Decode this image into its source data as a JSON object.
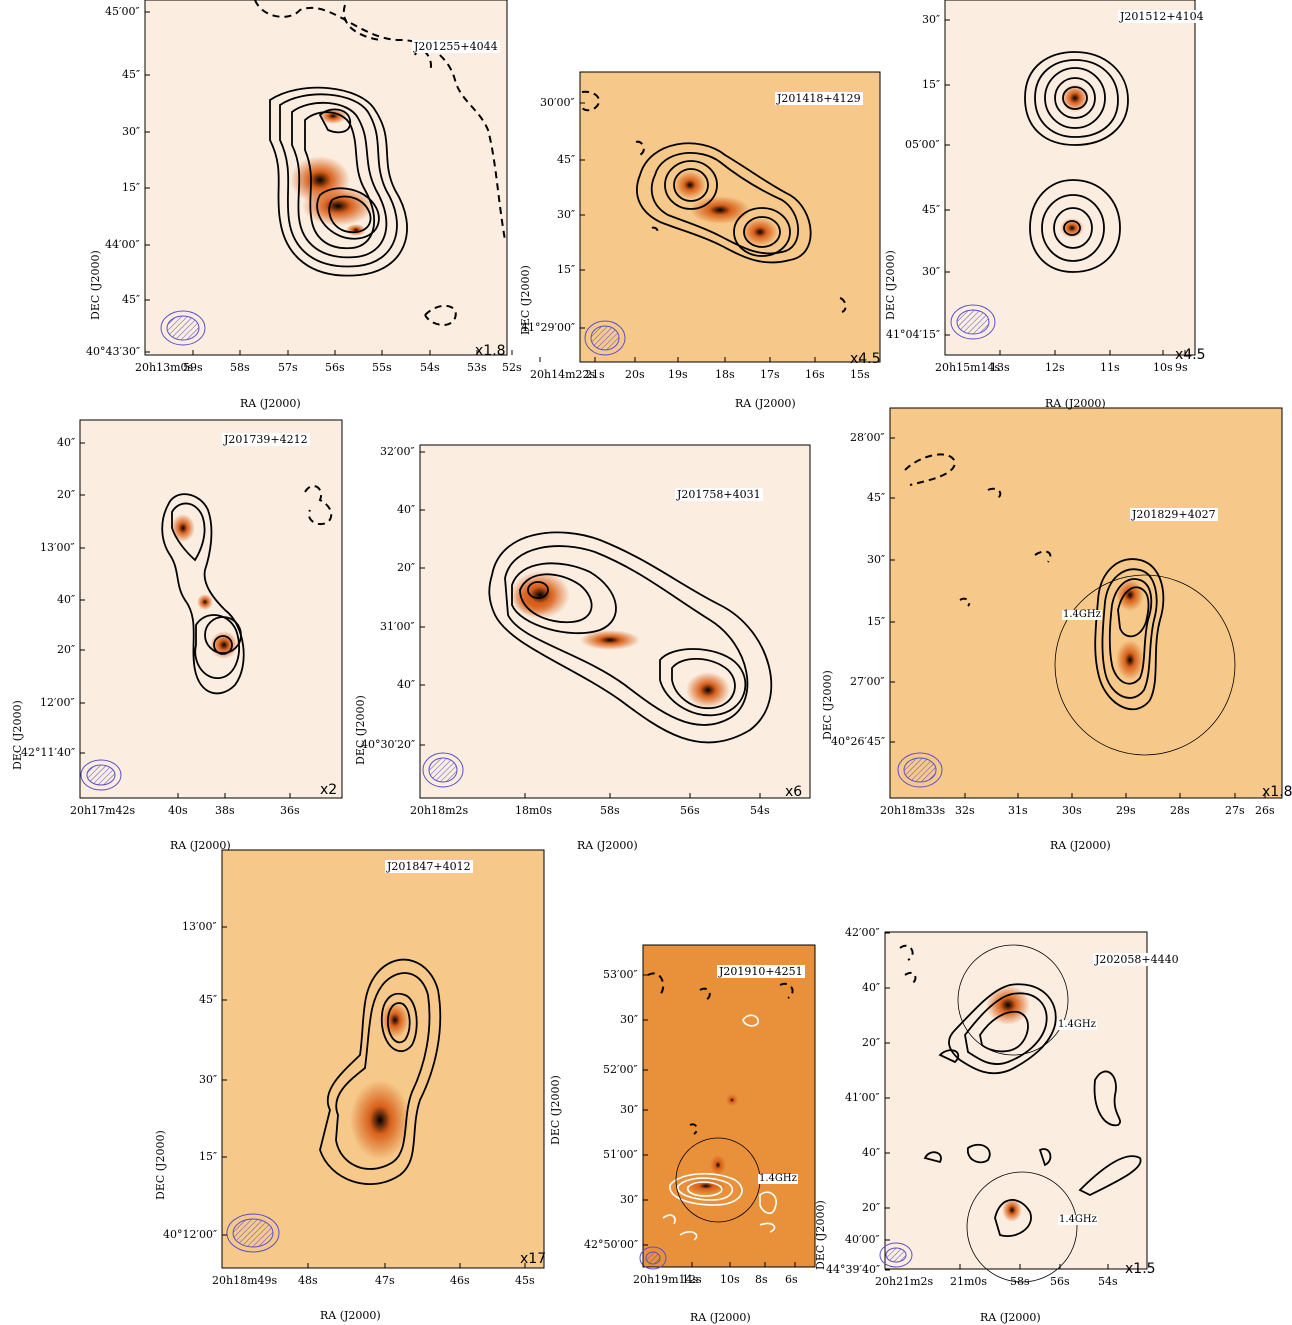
{
  "figure": {
    "panels": [
      {
        "id": "p1",
        "source": "J201255+4044",
        "scale": "x1.8",
        "ra_ticks": [
          "20h13m0s",
          "59s",
          "58s",
          "57s",
          "56s",
          "55s",
          "54s",
          "53s",
          "52s"
        ],
        "dec_ticks": [
          "45′00″",
          "45″",
          "30″",
          "15″",
          "44′00″",
          "45″",
          "40°43′30″"
        ],
        "ra_label": "RA (J2000)",
        "dec_label": "DEC (J2000)",
        "freq_label": "",
        "background": "light"
      },
      {
        "id": "p2",
        "source": "J201418+4129",
        "scale": "x4.5",
        "ra_ticks": [
          "20h14m22s",
          "21s",
          "20s",
          "19s",
          "18s",
          "17s",
          "16s",
          "15s"
        ],
        "dec_ticks": [
          "30′00″",
          "45″",
          "30″",
          "15″",
          "41°29′00″"
        ],
        "ra_label": "RA (J2000)",
        "dec_label": "DEC (J2000)",
        "freq_label": "",
        "background": "orange"
      },
      {
        "id": "p3",
        "source": "J201512+4104",
        "scale": "x4.5",
        "ra_ticks": [
          "20h15m14s",
          "13s",
          "12s",
          "11s",
          "10s",
          "9s"
        ],
        "dec_ticks": [
          "30″",
          "15″",
          "05′00″",
          "45″",
          "30″",
          "41°04′15″"
        ],
        "ra_label": "RA (J2000)",
        "dec_label": "DEC (J2000)",
        "freq_label": "",
        "background": "light"
      },
      {
        "id": "p4",
        "source": "J201739+4212",
        "scale": "x2",
        "ra_ticks": [
          "20h17m42s",
          "40s",
          "38s",
          "36s"
        ],
        "dec_ticks": [
          "40″",
          "20″",
          "13′00″",
          "40″",
          "20″",
          "12′00″",
          "42°11′40″"
        ],
        "ra_label": "RA (J2000)",
        "dec_label": "DEC (J2000)",
        "freq_label": "",
        "background": "light"
      },
      {
        "id": "p5",
        "source": "J201758+4031",
        "scale": "x6",
        "ra_ticks": [
          "20h18m2s",
          "18m0s",
          "58s",
          "56s",
          "54s"
        ],
        "dec_ticks": [
          "32′00″",
          "40″",
          "20″",
          "31′00″",
          "40″",
          "40°30′20″"
        ],
        "ra_label": "RA (J2000)",
        "dec_label": "DEC (J2000)",
        "freq_label": "",
        "background": "light"
      },
      {
        "id": "p6",
        "source": "J201829+4027",
        "scale": "x1.8",
        "ra_ticks": [
          "20h18m33s",
          "32s",
          "31s",
          "30s",
          "29s",
          "28s",
          "27s",
          "26s"
        ],
        "dec_ticks": [
          "28′00″",
          "45″",
          "30″",
          "15″",
          "27′00″",
          "40°26′45″"
        ],
        "ra_label": "RA (J2000)",
        "dec_label": "DEC (J2000)",
        "freq_label": "1.4GHz",
        "background": "orange"
      },
      {
        "id": "p7",
        "source": "J201847+4012",
        "scale": "x17",
        "ra_ticks": [
          "20h18m49s",
          "48s",
          "47s",
          "46s",
          "45s"
        ],
        "dec_ticks": [
          "13′00″",
          "45″",
          "30″",
          "15″",
          "40°12′00″"
        ],
        "ra_label": "RA (J2000)",
        "dec_label": "DEC (J2000)",
        "freq_label": "",
        "background": "orange"
      },
      {
        "id": "p8",
        "source": "J201910+4251",
        "scale": "",
        "ra_ticks": [
          "20h19m14s",
          "12s",
          "10s",
          "8s",
          "6s"
        ],
        "dec_ticks": [
          "53′00″",
          "30″",
          "52′00″",
          "30″",
          "51′00″",
          "30″",
          "42°50′00″"
        ],
        "ra_label": "RA (J2000)",
        "dec_label": "DEC (J2000)",
        "freq_label": "1.4GHz",
        "background": "deep"
      },
      {
        "id": "p9",
        "source": "J202058+4440",
        "scale": "x1.5",
        "ra_ticks": [
          "20h21m2s",
          "21m0s",
          "58s",
          "56s",
          "54s"
        ],
        "dec_ticks": [
          "42′00″",
          "40″",
          "20″",
          "41′00″",
          "40″",
          "20″",
          "40′00″",
          "44°39′40″"
        ],
        "ra_label": "RA (J2000)",
        "dec_label": "DEC (J2000)",
        "freq_label": "1.4GHz",
        "freq_label_2": "1.4GHz",
        "background": "light"
      }
    ],
    "colors": {
      "light_bg": "#fbeee0",
      "orange_bg": "#f6c98a",
      "deep_bg": "#e8913a",
      "peak": "#000000",
      "mid": "#d8601a",
      "beam": "#5a4fc8",
      "contour": "#000000"
    }
  }
}
